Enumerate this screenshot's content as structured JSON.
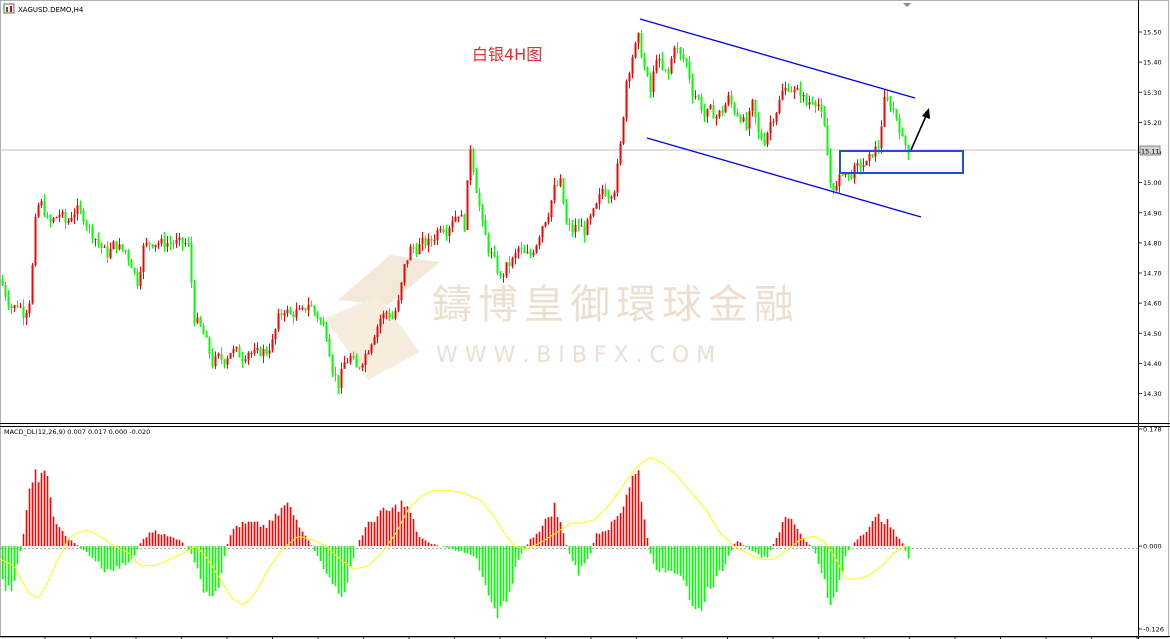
{
  "chart_title": "XAGUSD.DEMO,H4",
  "annotation": "白银4H图",
  "current_price": "15.11",
  "watermark": {
    "name": "鑄博皇御環球金融",
    "url": "W W W . B I B F X . C O M"
  },
  "colors": {
    "up": "#ff0000",
    "down": "#00ff00",
    "channel": "#0000ff",
    "signal": "#ffff00",
    "box": "#1f4fd8"
  },
  "chart_data": [
    {
      "type": "candlestick",
      "title": "XAGUSD.DEMO,H4",
      "ylim": [
        14.25,
        15.58
      ],
      "y_ticks": [
        "15.50",
        "15.40",
        "15.30",
        "15.20",
        "15.10",
        "15.00",
        "14.90",
        "14.80",
        "14.70",
        "14.60",
        "14.50",
        "14.40",
        "14.30"
      ],
      "close_path": [
        [
          0,
          14.68
        ],
        [
          6,
          14.62
        ],
        [
          12,
          14.58
        ],
        [
          18,
          14.6
        ],
        [
          24,
          14.56
        ],
        [
          30,
          14.62
        ],
        [
          36,
          14.92
        ],
        [
          42,
          14.93
        ],
        [
          48,
          14.86
        ],
        [
          54,
          14.88
        ],
        [
          60,
          14.9
        ],
        [
          66,
          14.86
        ],
        [
          72,
          14.9
        ],
        [
          78,
          14.91
        ],
        [
          84,
          14.88
        ],
        [
          90,
          14.84
        ],
        [
          96,
          14.81
        ],
        [
          102,
          14.78
        ],
        [
          108,
          14.76
        ],
        [
          114,
          14.8
        ],
        [
          120,
          14.78
        ],
        [
          126,
          14.77
        ],
        [
          132,
          14.72
        ],
        [
          138,
          14.66
        ],
        [
          142,
          14.78
        ],
        [
          148,
          14.8
        ],
        [
          154,
          14.8
        ],
        [
          160,
          14.8
        ],
        [
          166,
          14.8
        ],
        [
          172,
          14.8
        ],
        [
          178,
          14.8
        ],
        [
          184,
          14.8
        ],
        [
          188,
          14.79
        ],
        [
          194,
          14.55
        ],
        [
          200,
          14.52
        ],
        [
          206,
          14.47
        ],
        [
          212,
          14.4
        ],
        [
          218,
          14.42
        ],
        [
          224,
          14.41
        ],
        [
          230,
          14.44
        ],
        [
          236,
          14.44
        ],
        [
          242,
          14.42
        ],
        [
          248,
          14.44
        ],
        [
          254,
          14.43
        ],
        [
          260,
          14.44
        ],
        [
          266,
          14.44
        ],
        [
          272,
          14.47
        ],
        [
          278,
          14.55
        ],
        [
          284,
          14.58
        ],
        [
          290,
          14.56
        ],
        [
          296,
          14.57
        ],
        [
          302,
          14.57
        ],
        [
          308,
          14.6
        ],
        [
          314,
          14.57
        ],
        [
          320,
          14.54
        ],
        [
          326,
          14.5
        ],
        [
          332,
          14.38
        ],
        [
          338,
          14.33
        ],
        [
          344,
          14.4
        ],
        [
          350,
          14.42
        ],
        [
          356,
          14.38
        ],
        [
          362,
          14.41
        ],
        [
          368,
          14.45
        ],
        [
          374,
          14.5
        ],
        [
          380,
          14.55
        ],
        [
          386,
          14.57
        ],
        [
          392,
          14.55
        ],
        [
          398,
          14.6
        ],
        [
          404,
          14.72
        ],
        [
          410,
          14.78
        ],
        [
          416,
          14.78
        ],
        [
          422,
          14.8
        ],
        [
          428,
          14.8
        ],
        [
          434,
          14.82
        ],
        [
          440,
          14.86
        ],
        [
          446,
          14.84
        ],
        [
          452,
          14.88
        ],
        [
          458,
          14.9
        ],
        [
          464,
          14.86
        ],
        [
          470,
          15.12
        ],
        [
          476,
          14.98
        ],
        [
          482,
          14.86
        ],
        [
          488,
          14.78
        ],
        [
          494,
          14.74
        ],
        [
          500,
          14.68
        ],
        [
          506,
          14.72
        ],
        [
          512,
          14.74
        ],
        [
          518,
          14.78
        ],
        [
          524,
          14.76
        ],
        [
          530,
          14.76
        ],
        [
          536,
          14.8
        ],
        [
          542,
          14.86
        ],
        [
          548,
          14.9
        ],
        [
          554,
          14.98
        ],
        [
          560,
          15.0
        ],
        [
          566,
          14.86
        ],
        [
          572,
          14.84
        ],
        [
          578,
          14.86
        ],
        [
          584,
          14.84
        ],
        [
          590,
          14.88
        ],
        [
          596,
          14.92
        ],
        [
          602,
          14.98
        ],
        [
          608,
          14.96
        ],
        [
          614,
          14.98
        ],
        [
          620,
          15.12
        ],
        [
          626,
          15.34
        ],
        [
          632,
          15.42
        ],
        [
          638,
          15.48
        ],
        [
          644,
          15.38
        ],
        [
          650,
          15.3
        ],
        [
          656,
          15.42
        ],
        [
          662,
          15.37
        ],
        [
          668,
          15.36
        ],
        [
          674,
          15.46
        ],
        [
          680,
          15.42
        ],
        [
          686,
          15.4
        ],
        [
          692,
          15.3
        ],
        [
          698,
          15.28
        ],
        [
          704,
          15.22
        ],
        [
          710,
          15.24
        ],
        [
          716,
          15.22
        ],
        [
          722,
          15.24
        ],
        [
          728,
          15.28
        ],
        [
          734,
          15.24
        ],
        [
          740,
          15.22
        ],
        [
          746,
          15.18
        ],
        [
          752,
          15.26
        ],
        [
          758,
          15.16
        ],
        [
          764,
          15.14
        ],
        [
          770,
          15.2
        ],
        [
          776,
          15.24
        ],
        [
          782,
          15.3
        ],
        [
          788,
          15.32
        ],
        [
          794,
          15.3
        ],
        [
          800,
          15.3
        ],
        [
          806,
          15.26
        ],
        [
          812,
          15.28
        ],
        [
          818,
          15.26
        ],
        [
          824,
          15.18
        ],
        [
          830,
          15.0
        ],
        [
          836,
          14.98
        ],
        [
          842,
          15.04
        ],
        [
          848,
          15.02
        ],
        [
          854,
          15.04
        ],
        [
          860,
          15.06
        ],
        [
          866,
          15.06
        ],
        [
          872,
          15.1
        ],
        [
          878,
          15.12
        ],
        [
          884,
          15.27
        ],
        [
          890,
          15.26
        ],
        [
          896,
          15.22
        ],
        [
          902,
          15.14
        ],
        [
          908,
          15.11
        ]
      ]
    },
    {
      "type": "bar",
      "title": "MACD_DL(12,26,9) 0.007 0.017 0.000 -0.020",
      "ylim": [
        -0.126,
        0.178
      ],
      "y_ticks": [
        "0.178",
        "0.000",
        "-0.126"
      ],
      "histogram_path": [
        [
          0,
          -0.05
        ],
        [
          12,
          -0.075
        ],
        [
          22,
          0.01
        ],
        [
          30,
          0.09
        ],
        [
          40,
          0.115
        ],
        [
          48,
          0.09
        ],
        [
          56,
          0.03
        ],
        [
          70,
          0.01
        ],
        [
          82,
          -0.005
        ],
        [
          94,
          -0.02
        ],
        [
          106,
          -0.04
        ],
        [
          120,
          -0.03
        ],
        [
          132,
          -0.02
        ],
        [
          142,
          0.01
        ],
        [
          154,
          0.025
        ],
        [
          166,
          0.015
        ],
        [
          180,
          0.01
        ],
        [
          190,
          -0.01
        ],
        [
          200,
          -0.05
        ],
        [
          210,
          -0.09
        ],
        [
          218,
          -0.07
        ],
        [
          226,
          0.0
        ],
        [
          234,
          0.03
        ],
        [
          250,
          0.035
        ],
        [
          266,
          0.03
        ],
        [
          276,
          0.045
        ],
        [
          286,
          0.065
        ],
        [
          298,
          0.035
        ],
        [
          308,
          0.01
        ],
        [
          318,
          -0.02
        ],
        [
          330,
          -0.05
        ],
        [
          338,
          -0.08
        ],
        [
          348,
          -0.05
        ],
        [
          356,
          0.0
        ],
        [
          366,
          0.03
        ],
        [
          380,
          0.05
        ],
        [
          392,
          0.055
        ],
        [
          402,
          0.065
        ],
        [
          410,
          0.05
        ],
        [
          418,
          0.015
        ],
        [
          428,
          0.005
        ],
        [
          440,
          0.0
        ],
        [
          452,
          -0.005
        ],
        [
          464,
          -0.01
        ],
        [
          476,
          -0.02
        ],
        [
          488,
          -0.07
        ],
        [
          496,
          -0.1
        ],
        [
          508,
          -0.07
        ],
        [
          518,
          -0.02
        ],
        [
          530,
          0.01
        ],
        [
          542,
          0.03
        ],
        [
          554,
          0.06
        ],
        [
          562,
          0.025
        ],
        [
          568,
          -0.01
        ],
        [
          578,
          -0.04
        ],
        [
          588,
          -0.02
        ],
        [
          596,
          0.02
        ],
        [
          610,
          0.03
        ],
        [
          622,
          0.06
        ],
        [
          630,
          0.1
        ],
        [
          638,
          0.11
        ],
        [
          646,
          0.02
        ],
        [
          652,
          -0.03
        ],
        [
          666,
          -0.04
        ],
        [
          680,
          -0.05
        ],
        [
          692,
          -0.08
        ],
        [
          700,
          -0.09
        ],
        [
          712,
          -0.06
        ],
        [
          724,
          -0.03
        ],
        [
          736,
          0.01
        ],
        [
          744,
          0.0
        ],
        [
          754,
          -0.01
        ],
        [
          766,
          -0.02
        ],
        [
          778,
          0.02
        ],
        [
          786,
          0.045
        ],
        [
          794,
          0.035
        ],
        [
          804,
          0.01
        ],
        [
          814,
          -0.005
        ],
        [
          822,
          -0.05
        ],
        [
          830,
          -0.085
        ],
        [
          838,
          -0.06
        ],
        [
          846,
          -0.01
        ],
        [
          856,
          0.01
        ],
        [
          866,
          0.025
        ],
        [
          878,
          0.045
        ],
        [
          888,
          0.035
        ],
        [
          896,
          0.015
        ],
        [
          902,
          0.005
        ],
        [
          908,
          -0.02
        ]
      ],
      "signal_path": [
        [
          0,
          -0.02
        ],
        [
          14,
          -0.03
        ],
        [
          28,
          -0.07
        ],
        [
          38,
          -0.08
        ],
        [
          46,
          -0.06
        ],
        [
          58,
          -0.02
        ],
        [
          70,
          0.015
        ],
        [
          86,
          0.025
        ],
        [
          100,
          0.015
        ],
        [
          114,
          0.0
        ],
        [
          128,
          -0.01
        ],
        [
          140,
          -0.03
        ],
        [
          154,
          -0.03
        ],
        [
          170,
          -0.02
        ],
        [
          184,
          -0.01
        ],
        [
          196,
          0.0
        ],
        [
          208,
          -0.02
        ],
        [
          220,
          -0.05
        ],
        [
          232,
          -0.08
        ],
        [
          244,
          -0.09
        ],
        [
          256,
          -0.07
        ],
        [
          268,
          -0.035
        ],
        [
          282,
          -0.005
        ],
        [
          298,
          0.015
        ],
        [
          312,
          0.01
        ],
        [
          326,
          0.0
        ],
        [
          340,
          -0.02
        ],
        [
          354,
          -0.035
        ],
        [
          368,
          -0.03
        ],
        [
          382,
          -0.01
        ],
        [
          396,
          0.02
        ],
        [
          408,
          0.055
        ],
        [
          420,
          0.075
        ],
        [
          434,
          0.085
        ],
        [
          448,
          0.085
        ],
        [
          464,
          0.08
        ],
        [
          480,
          0.07
        ],
        [
          494,
          0.045
        ],
        [
          504,
          0.02
        ],
        [
          514,
          0.0
        ],
        [
          526,
          -0.005
        ],
        [
          540,
          0.005
        ],
        [
          556,
          0.02
        ],
        [
          570,
          0.035
        ],
        [
          582,
          0.035
        ],
        [
          594,
          0.04
        ],
        [
          608,
          0.06
        ],
        [
          622,
          0.09
        ],
        [
          636,
          0.12
        ],
        [
          650,
          0.135
        ],
        [
          664,
          0.125
        ],
        [
          678,
          0.105
        ],
        [
          692,
          0.08
        ],
        [
          706,
          0.055
        ],
        [
          720,
          0.02
        ],
        [
          734,
          0.0
        ],
        [
          746,
          -0.01
        ],
        [
          760,
          -0.02
        ],
        [
          774,
          -0.02
        ],
        [
          788,
          -0.005
        ],
        [
          800,
          0.01
        ],
        [
          814,
          0.015
        ],
        [
          826,
          0.005
        ],
        [
          836,
          -0.02
        ],
        [
          846,
          -0.05
        ],
        [
          856,
          -0.05
        ],
        [
          868,
          -0.045
        ],
        [
          882,
          -0.03
        ],
        [
          894,
          -0.01
        ],
        [
          906,
          0.0
        ]
      ]
    }
  ]
}
